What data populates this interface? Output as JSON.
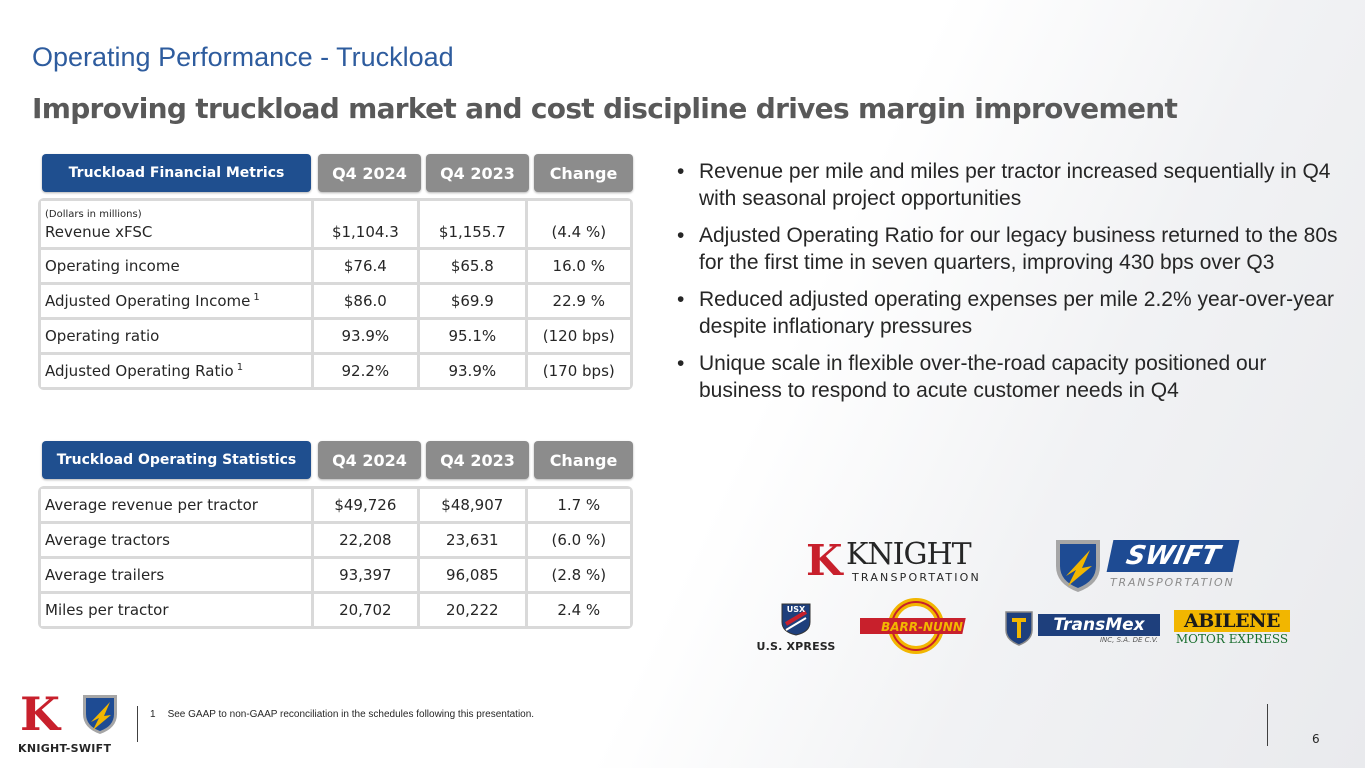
{
  "title": "Operating Performance - Truckload",
  "subtitle": "Improving truckload market and cost discipline drives margin improvement",
  "financial_table": {
    "header": "Truckload Financial Metrics",
    "columns": [
      "Q4 2024",
      "Q4 2023",
      "Change"
    ],
    "units_note": "(Dollars in millions)",
    "rows": [
      {
        "label": "Revenue xFSC",
        "sup": "",
        "q4_2024": "$1,104.3",
        "q4_2023": "$1,155.7",
        "change": "(4.4 %)"
      },
      {
        "label": "Operating income",
        "sup": "",
        "q4_2024": "$76.4",
        "q4_2023": "$65.8",
        "change": "16.0 %"
      },
      {
        "label": "Adjusted Operating Income",
        "sup": "1",
        "q4_2024": "$86.0",
        "q4_2023": "$69.9",
        "change": "22.9 %"
      },
      {
        "label": "Operating ratio",
        "sup": "",
        "q4_2024": "93.9%",
        "q4_2023": "95.1%",
        "change": "(120 bps)"
      },
      {
        "label": "Adjusted Operating Ratio",
        "sup": "1",
        "q4_2024": "92.2%",
        "q4_2023": "93.9%",
        "change": "(170 bps)"
      }
    ]
  },
  "stats_table": {
    "header": "Truckload Operating Statistics",
    "columns": [
      "Q4 2024",
      "Q4 2023",
      "Change"
    ],
    "rows": [
      {
        "label": "Average revenue per tractor",
        "q4_2024": "$49,726",
        "q4_2023": "$48,907",
        "change": "1.7 %"
      },
      {
        "label": "Average tractors",
        "q4_2024": "22,208",
        "q4_2023": "23,631",
        "change": "(6.0 %)"
      },
      {
        "label": "Average trailers",
        "q4_2024": "93,397",
        "q4_2023": "96,085",
        "change": "(2.8 %)"
      },
      {
        "label": "Miles per tractor",
        "q4_2024": "20,702",
        "q4_2023": "20,222",
        "change": "2.4 %"
      }
    ]
  },
  "bullets": [
    "Revenue per mile and miles per tractor increased sequentially in Q4 with seasonal project opportunities",
    "Adjusted Operating Ratio for our legacy business returned to the 80s for the first time in seven quarters, improving 430 bps over Q3",
    "Reduced adjusted operating expenses per mile 2.2% year-over-year despite inflationary pressures",
    "Unique scale in flexible over-the-road capacity positioned our business to respond to acute customer needs in Q4"
  ],
  "bullet_glyph": "•",
  "logos": {
    "knight": {
      "mark": "K",
      "name": "KNIGHT",
      "sub": "TRANSPORTATION"
    },
    "swift": {
      "name": "SWIFT",
      "sub": "TRANSPORTATION"
    },
    "usx": {
      "badge": "USX",
      "name": "U.S. XPRESS"
    },
    "barr_nunn": {
      "name": "BARR-NUNN"
    },
    "transmex": {
      "name": "TransMex",
      "sub": "INC, S.A. DE C.V."
    },
    "abilene": {
      "name": "ABILENE",
      "sub": "MOTOR EXPRESS"
    },
    "knight_swift": {
      "mark": "K",
      "name": "KNIGHT-SWIFT"
    }
  },
  "footnote": {
    "number": "1",
    "text": "See GAAP to non-GAAP reconciliation in the schedules following this presentation."
  },
  "page_number": "6",
  "colors": {
    "title_blue": "#2e5c9e",
    "header_navy": "#1f4f8f",
    "header_gray": "#8c8c8c",
    "brand_red": "#c8202c"
  }
}
